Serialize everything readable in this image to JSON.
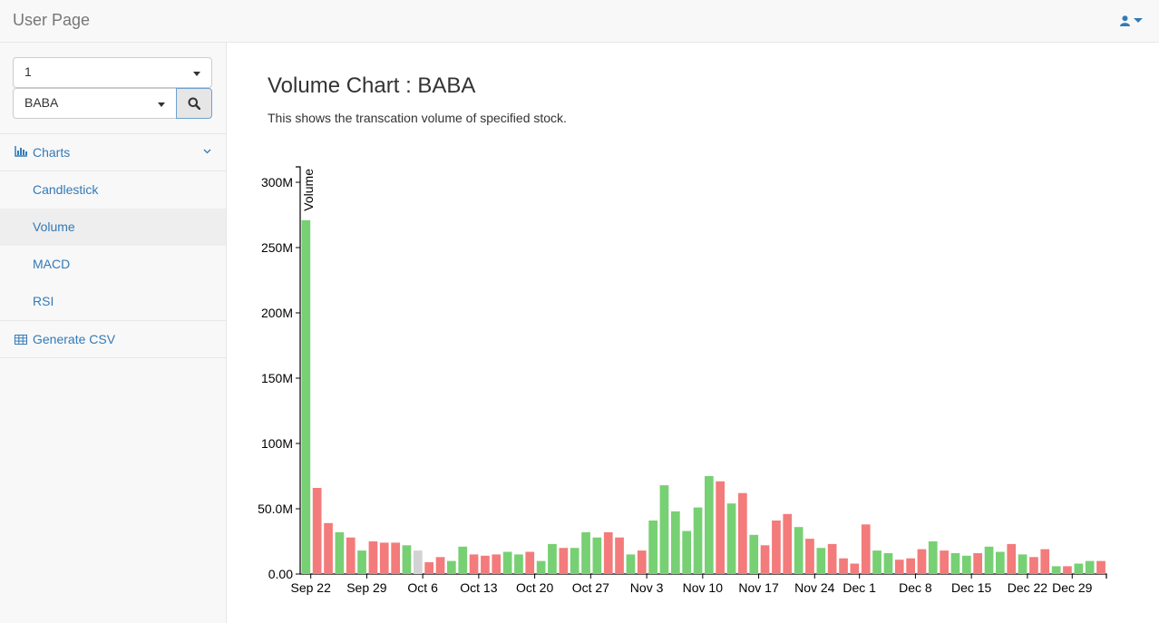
{
  "navbar": {
    "brand": "User Page"
  },
  "sidebar": {
    "select1_value": "1",
    "select2_value": "BABA",
    "charts_label": "Charts",
    "sub_items": [
      {
        "label": "Candlestick",
        "active": false
      },
      {
        "label": "Volume",
        "active": true
      },
      {
        "label": "MACD",
        "active": false
      },
      {
        "label": "RSI",
        "active": false
      }
    ],
    "csv_label": "Generate CSV"
  },
  "main": {
    "title": "Volume Chart : BABA",
    "description": "This shows the transcation volume of specified stock."
  },
  "colors": {
    "up": "#77d073",
    "down": "#f37b7b",
    "flat": "#d3d3d3",
    "link": "#337ab7"
  },
  "chart_data": {
    "type": "bar",
    "ylabel": "Volume",
    "xlabel": "",
    "ylim": [
      0,
      312000000
    ],
    "yticks": [
      "0.00",
      "50.0M",
      "100M",
      "150M",
      "200M",
      "250M",
      "300M"
    ],
    "xticks": [
      "Sep 22",
      "Sep 29",
      "Oct 6",
      "Oct 13",
      "Oct 20",
      "Oct 27",
      "Nov 3",
      "Nov 10",
      "Nov 17",
      "Nov 24",
      "Dec 1",
      "Dec 8",
      "Dec 15",
      "Dec 22",
      "Dec 29"
    ],
    "bars": [
      {
        "date": "2014-09-19",
        "value": 271,
        "dir": "up"
      },
      {
        "date": "2014-09-22",
        "value": 66,
        "dir": "down"
      },
      {
        "date": "2014-09-23",
        "value": 39,
        "dir": "down"
      },
      {
        "date": "2014-09-24",
        "value": 32,
        "dir": "up"
      },
      {
        "date": "2014-09-25",
        "value": 28,
        "dir": "down"
      },
      {
        "date": "2014-09-26",
        "value": 18,
        "dir": "up"
      },
      {
        "date": "2014-09-29",
        "value": 25,
        "dir": "down"
      },
      {
        "date": "2014-09-30",
        "value": 24,
        "dir": "down"
      },
      {
        "date": "2014-10-01",
        "value": 24,
        "dir": "down"
      },
      {
        "date": "2014-10-02",
        "value": 22,
        "dir": "up"
      },
      {
        "date": "2014-10-03",
        "value": 18,
        "dir": "flat"
      },
      {
        "date": "2014-10-06",
        "value": 9,
        "dir": "down"
      },
      {
        "date": "2014-10-07",
        "value": 13,
        "dir": "down"
      },
      {
        "date": "2014-10-08",
        "value": 10,
        "dir": "up"
      },
      {
        "date": "2014-10-09",
        "value": 21,
        "dir": "up"
      },
      {
        "date": "2014-10-10",
        "value": 15,
        "dir": "down"
      },
      {
        "date": "2014-10-13",
        "value": 14,
        "dir": "down"
      },
      {
        "date": "2014-10-14",
        "value": 15,
        "dir": "down"
      },
      {
        "date": "2014-10-15",
        "value": 17,
        "dir": "up"
      },
      {
        "date": "2014-10-16",
        "value": 15,
        "dir": "up"
      },
      {
        "date": "2014-10-17",
        "value": 17,
        "dir": "down"
      },
      {
        "date": "2014-10-20",
        "value": 10,
        "dir": "up"
      },
      {
        "date": "2014-10-21",
        "value": 23,
        "dir": "up"
      },
      {
        "date": "2014-10-22",
        "value": 20,
        "dir": "down"
      },
      {
        "date": "2014-10-23",
        "value": 20,
        "dir": "up"
      },
      {
        "date": "2014-10-24",
        "value": 32,
        "dir": "up"
      },
      {
        "date": "2014-10-27",
        "value": 28,
        "dir": "up"
      },
      {
        "date": "2014-10-28",
        "value": 32,
        "dir": "down"
      },
      {
        "date": "2014-10-29",
        "value": 28,
        "dir": "down"
      },
      {
        "date": "2014-10-30",
        "value": 15,
        "dir": "up"
      },
      {
        "date": "2014-10-31",
        "value": 18,
        "dir": "down"
      },
      {
        "date": "2014-11-03",
        "value": 41,
        "dir": "up"
      },
      {
        "date": "2014-11-04",
        "value": 68,
        "dir": "up"
      },
      {
        "date": "2014-11-05",
        "value": 48,
        "dir": "up"
      },
      {
        "date": "2014-11-06",
        "value": 33,
        "dir": "up"
      },
      {
        "date": "2014-11-07",
        "value": 51,
        "dir": "up"
      },
      {
        "date": "2014-11-10",
        "value": 75,
        "dir": "up"
      },
      {
        "date": "2014-11-11",
        "value": 71,
        "dir": "down"
      },
      {
        "date": "2014-11-12",
        "value": 54,
        "dir": "up"
      },
      {
        "date": "2014-11-13",
        "value": 62,
        "dir": "down"
      },
      {
        "date": "2014-11-14",
        "value": 30,
        "dir": "up"
      },
      {
        "date": "2014-11-17",
        "value": 22,
        "dir": "down"
      },
      {
        "date": "2014-11-18",
        "value": 41,
        "dir": "down"
      },
      {
        "date": "2014-11-19",
        "value": 46,
        "dir": "down"
      },
      {
        "date": "2014-11-20",
        "value": 36,
        "dir": "up"
      },
      {
        "date": "2014-11-21",
        "value": 27,
        "dir": "down"
      },
      {
        "date": "2014-11-24",
        "value": 20,
        "dir": "up"
      },
      {
        "date": "2014-11-25",
        "value": 23,
        "dir": "down"
      },
      {
        "date": "2014-11-26",
        "value": 12,
        "dir": "down"
      },
      {
        "date": "2014-11-28",
        "value": 8,
        "dir": "down"
      },
      {
        "date": "2014-12-01",
        "value": 38,
        "dir": "down"
      },
      {
        "date": "2014-12-02",
        "value": 18,
        "dir": "up"
      },
      {
        "date": "2014-12-03",
        "value": 16,
        "dir": "up"
      },
      {
        "date": "2014-12-04",
        "value": 11,
        "dir": "down"
      },
      {
        "date": "2014-12-05",
        "value": 12,
        "dir": "down"
      },
      {
        "date": "2014-12-08",
        "value": 19,
        "dir": "down"
      },
      {
        "date": "2014-12-09",
        "value": 25,
        "dir": "up"
      },
      {
        "date": "2014-12-10",
        "value": 18,
        "dir": "down"
      },
      {
        "date": "2014-12-11",
        "value": 16,
        "dir": "up"
      },
      {
        "date": "2014-12-12",
        "value": 14,
        "dir": "up"
      },
      {
        "date": "2014-12-15",
        "value": 16,
        "dir": "down"
      },
      {
        "date": "2014-12-16",
        "value": 21,
        "dir": "up"
      },
      {
        "date": "2014-12-17",
        "value": 17,
        "dir": "up"
      },
      {
        "date": "2014-12-18",
        "value": 23,
        "dir": "down"
      },
      {
        "date": "2014-12-19",
        "value": 15,
        "dir": "up"
      },
      {
        "date": "2014-12-22",
        "value": 13,
        "dir": "down"
      },
      {
        "date": "2014-12-23",
        "value": 19,
        "dir": "down"
      },
      {
        "date": "2014-12-24",
        "value": 6,
        "dir": "up"
      },
      {
        "date": "2014-12-26",
        "value": 6,
        "dir": "down"
      },
      {
        "date": "2014-12-29",
        "value": 8,
        "dir": "up"
      },
      {
        "date": "2014-12-30",
        "value": 10,
        "dir": "up"
      },
      {
        "date": "2014-12-31",
        "value": 10,
        "dir": "down"
      }
    ],
    "value_unit": "M"
  }
}
